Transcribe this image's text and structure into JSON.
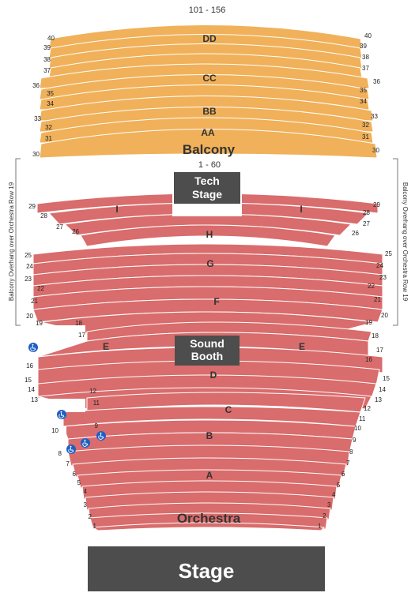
{
  "colors": {
    "balcony": "#f0b15a",
    "orchestra": "#d96c6c",
    "box": "#4d4d4d",
    "accessible": "#1f5fc4"
  },
  "balcony": {
    "name": "Balcony",
    "seat_range": "101 - 156",
    "row_labels": [
      "DD",
      "CC",
      "BB",
      "AA"
    ],
    "row_numbers": [
      "40",
      "39",
      "38",
      "37",
      "36",
      "35",
      "34",
      "33",
      "32",
      "31",
      "30"
    ]
  },
  "orchestra": {
    "name": "Orchestra",
    "seat_range": "1 - 60",
    "row_labels": [
      "I",
      "I",
      "H",
      "G",
      "F",
      "E",
      "E",
      "D",
      "C",
      "B",
      "A"
    ],
    "row_numbers": [
      "29",
      "28",
      "27",
      "26",
      "25",
      "24",
      "23",
      "22",
      "21",
      "20",
      "19",
      "18",
      "17",
      "16",
      "15",
      "14",
      "13",
      "12",
      "11",
      "10",
      "9",
      "8",
      "7",
      "6",
      "5",
      "4",
      "3",
      "2",
      "1"
    ]
  },
  "tech_stage": {
    "line1": "Tech",
    "line2": "Stage"
  },
  "sound_booth": {
    "line1": "Sound",
    "line2": "Booth"
  },
  "stage": {
    "label": "Stage"
  },
  "overhang_note": "Balcony Overhang over Orchestra Row 19",
  "accessible_icon": "wheelchair-icon"
}
